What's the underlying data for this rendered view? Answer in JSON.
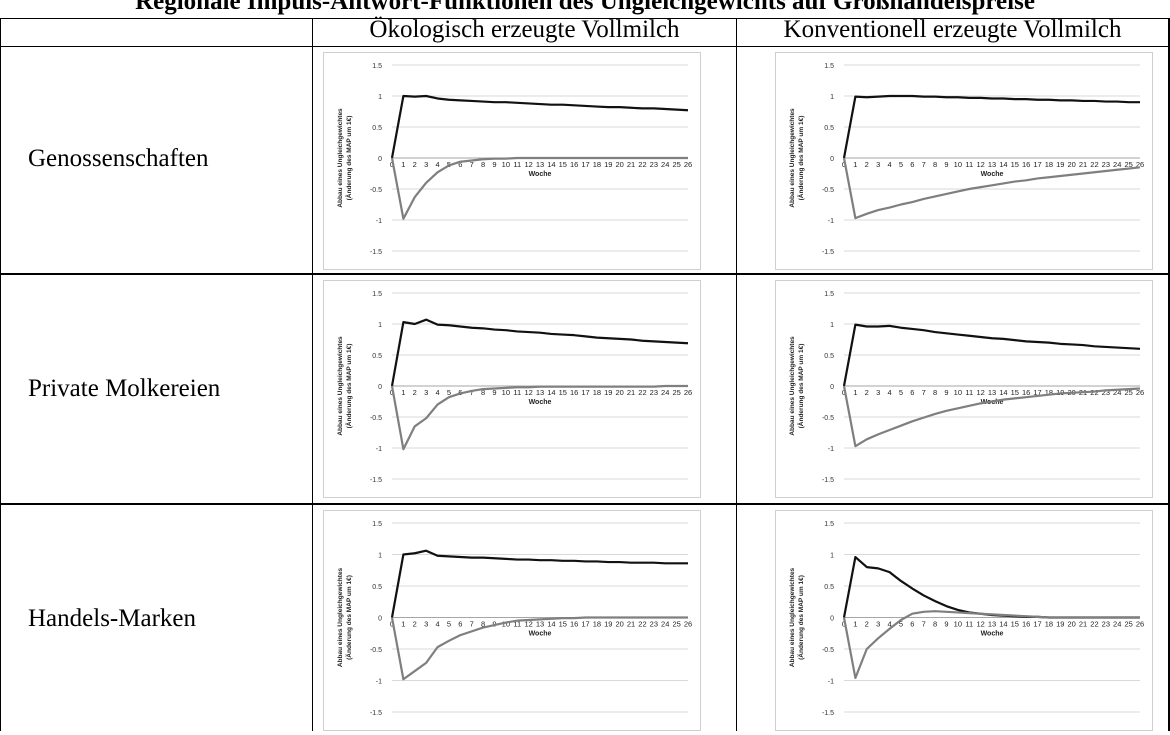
{
  "title_partial": "Regionale Impuls-Antwort-Funktionen des Ungleichgewichts auf Großhandelspreise",
  "columns": [
    "Ökologisch erzeugte Vollmilch",
    "Konventionell erzeugte Vollmilch"
  ],
  "rows": [
    "Genossenschaften",
    "Private Molkereien",
    "Handels-Marken"
  ],
  "colors": {
    "black_series": "#111111",
    "gray_series": "#7f7f7f",
    "grid": "#d9d9d9",
    "axis": "#a6a6a6"
  },
  "chart_data": [
    {
      "type": "line",
      "row": "Genossenschaften",
      "column": "Ökologisch erzeugte Vollmilch",
      "xlabel": "Woche",
      "ylabel": "Abbau eines Ungleichgewichtes (Änderung des MAP um 1€)",
      "ylim": [
        -1.5,
        1.5
      ],
      "yticks": [
        "1.5",
        "1",
        "0.5",
        "0",
        "-0.5",
        "-1",
        "-1.5"
      ],
      "x": [
        0,
        1,
        2,
        3,
        4,
        5,
        6,
        7,
        8,
        9,
        10,
        11,
        12,
        13,
        14,
        15,
        16,
        17,
        18,
        19,
        20,
        21,
        22,
        23,
        24,
        25,
        26
      ],
      "series": [
        {
          "values": [
            0,
            1.0,
            0.99,
            1.0,
            0.96,
            0.94,
            0.93,
            0.92,
            0.91,
            0.9,
            0.9,
            0.89,
            0.88,
            0.87,
            0.86,
            0.86,
            0.85,
            0.84,
            0.83,
            0.82,
            0.82,
            0.81,
            0.8,
            0.8,
            0.79,
            0.78,
            0.77
          ]
        },
        {
          "values": [
            0,
            -0.98,
            -0.63,
            -0.4,
            -0.23,
            -0.12,
            -0.06,
            -0.04,
            -0.02,
            -0.01,
            -0.01,
            0,
            0,
            0,
            0,
            0,
            0,
            0,
            0,
            0,
            0,
            0,
            0,
            0,
            0,
            0,
            0
          ]
        }
      ]
    },
    {
      "type": "line",
      "row": "Genossenschaften",
      "column": "Konventionell erzeugte Vollmilch",
      "xlabel": "Woche",
      "ylabel": "Abbau eines Ungleichgewichtes (Änderung des MAP um 1€)",
      "ylim": [
        -1.5,
        1.5
      ],
      "yticks": [
        "1.5",
        "1",
        "0.5",
        "0",
        "-0.5",
        "-1",
        "-1.5"
      ],
      "x": [
        0,
        1,
        2,
        3,
        4,
        5,
        6,
        7,
        8,
        9,
        10,
        11,
        12,
        13,
        14,
        15,
        16,
        17,
        18,
        19,
        20,
        21,
        22,
        23,
        24,
        25,
        26
      ],
      "series": [
        {
          "values": [
            0,
            0.99,
            0.98,
            0.99,
            1.0,
            1.0,
            1.0,
            0.99,
            0.99,
            0.98,
            0.98,
            0.97,
            0.97,
            0.96,
            0.96,
            0.95,
            0.95,
            0.94,
            0.94,
            0.93,
            0.93,
            0.92,
            0.92,
            0.91,
            0.91,
            0.9,
            0.9
          ]
        },
        {
          "values": [
            0,
            -0.97,
            -0.9,
            -0.84,
            -0.8,
            -0.75,
            -0.71,
            -0.66,
            -0.62,
            -0.58,
            -0.54,
            -0.5,
            -0.47,
            -0.44,
            -0.41,
            -0.38,
            -0.36,
            -0.33,
            -0.31,
            -0.29,
            -0.27,
            -0.25,
            -0.23,
            -0.21,
            -0.19,
            -0.17,
            -0.15
          ]
        }
      ]
    },
    {
      "type": "line",
      "row": "Private Molkereien",
      "column": "Ökologisch erzeugte Vollmilch",
      "xlabel": "Woche",
      "ylabel": "Abbau eines Ungleichgewichtes (Änderung des MAP um 1€)",
      "ylim": [
        -1.5,
        1.5
      ],
      "yticks": [
        "1.5",
        "1",
        "0.5",
        "0",
        "-0.5",
        "-1",
        "-1.5"
      ],
      "x": [
        0,
        1,
        2,
        3,
        4,
        5,
        6,
        7,
        8,
        9,
        10,
        11,
        12,
        13,
        14,
        15,
        16,
        17,
        18,
        19,
        20,
        21,
        22,
        23,
        24,
        25,
        26
      ],
      "series": [
        {
          "values": [
            0,
            1.03,
            1.0,
            1.07,
            0.99,
            0.98,
            0.96,
            0.94,
            0.93,
            0.91,
            0.9,
            0.88,
            0.87,
            0.86,
            0.84,
            0.83,
            0.82,
            0.8,
            0.78,
            0.77,
            0.76,
            0.75,
            0.73,
            0.72,
            0.71,
            0.7,
            0.69
          ]
        },
        {
          "values": [
            0,
            -1.02,
            -0.65,
            -0.52,
            -0.3,
            -0.18,
            -0.12,
            -0.08,
            -0.05,
            -0.04,
            -0.03,
            -0.02,
            -0.02,
            -0.01,
            -0.01,
            -0.01,
            -0.01,
            -0.01,
            -0.01,
            -0.01,
            -0.01,
            -0.01,
            -0.01,
            -0.01,
            0,
            0,
            0
          ]
        }
      ]
    },
    {
      "type": "line",
      "row": "Private Molkereien",
      "column": "Konventionell erzeugte Vollmilch",
      "xlabel": "Woche",
      "ylabel": "Abbau eines Ungleichgewichtes (Änderung des MAP um 1€)",
      "ylim": [
        -1.5,
        1.5
      ],
      "yticks": [
        "1.5",
        "1",
        "0.5",
        "0",
        "-0.5",
        "-1",
        "-1.5"
      ],
      "x": [
        0,
        1,
        2,
        3,
        4,
        5,
        6,
        7,
        8,
        9,
        10,
        11,
        12,
        13,
        14,
        15,
        16,
        17,
        18,
        19,
        20,
        21,
        22,
        23,
        24,
        25,
        26
      ],
      "series": [
        {
          "values": [
            0,
            0.99,
            0.96,
            0.96,
            0.97,
            0.94,
            0.92,
            0.9,
            0.87,
            0.85,
            0.83,
            0.81,
            0.79,
            0.77,
            0.76,
            0.74,
            0.72,
            0.71,
            0.7,
            0.68,
            0.67,
            0.66,
            0.64,
            0.63,
            0.62,
            0.61,
            0.6
          ]
        },
        {
          "values": [
            0,
            -0.97,
            -0.86,
            -0.78,
            -0.71,
            -0.64,
            -0.57,
            -0.51,
            -0.45,
            -0.4,
            -0.36,
            -0.32,
            -0.28,
            -0.25,
            -0.22,
            -0.2,
            -0.18,
            -0.16,
            -0.14,
            -0.12,
            -0.11,
            -0.1,
            -0.09,
            -0.07,
            -0.06,
            -0.05,
            -0.04
          ]
        }
      ]
    },
    {
      "type": "line",
      "row": "Handels-Marken",
      "column": "Ökologisch erzeugte Vollmilch",
      "xlabel": "Woche",
      "ylabel": "Abbau eines Ungleichgewichtes (Änderung des MAP um 1€)",
      "ylim": [
        -1.5,
        1.5
      ],
      "yticks": [
        "1.5",
        "1",
        "0.5",
        "0",
        "-0.5",
        "-1",
        "-1.5"
      ],
      "x": [
        0,
        1,
        2,
        3,
        4,
        5,
        6,
        7,
        8,
        9,
        10,
        11,
        12,
        13,
        14,
        15,
        16,
        17,
        18,
        19,
        20,
        21,
        22,
        23,
        24,
        25,
        26
      ],
      "series": [
        {
          "values": [
            0,
            1.0,
            1.02,
            1.06,
            0.98,
            0.97,
            0.96,
            0.95,
            0.95,
            0.94,
            0.93,
            0.92,
            0.92,
            0.91,
            0.91,
            0.9,
            0.9,
            0.89,
            0.89,
            0.88,
            0.88,
            0.87,
            0.87,
            0.87,
            0.86,
            0.86,
            0.86
          ]
        },
        {
          "values": [
            0,
            -0.98,
            -0.85,
            -0.72,
            -0.47,
            -0.37,
            -0.28,
            -0.22,
            -0.16,
            -0.12,
            -0.08,
            -0.05,
            -0.04,
            -0.03,
            -0.02,
            -0.01,
            -0.01,
            0,
            0,
            0,
            0,
            0,
            0,
            0,
            0,
            0,
            0
          ]
        }
      ]
    },
    {
      "type": "line",
      "row": "Handels-Marken",
      "column": "Konventionell erzeugte Vollmilch",
      "xlabel": "Woche",
      "ylabel": "Abbau eines Ungleichgewichtes (Änderung des MAP um 1€)",
      "ylim": [
        -1.5,
        1.5
      ],
      "yticks": [
        "1.5",
        "1",
        "0.5",
        "0",
        "-0.5",
        "-1",
        "-1.5"
      ],
      "x": [
        0,
        1,
        2,
        3,
        4,
        5,
        6,
        7,
        8,
        9,
        10,
        11,
        12,
        13,
        14,
        15,
        16,
        17,
        18,
        19,
        20,
        21,
        22,
        23,
        24,
        25,
        26
      ],
      "series": [
        {
          "values": [
            0,
            0.96,
            0.8,
            0.78,
            0.72,
            0.58,
            0.46,
            0.35,
            0.26,
            0.18,
            0.12,
            0.08,
            0.06,
            0.04,
            0.03,
            0.02,
            0.01,
            0.01,
            0,
            0,
            0,
            0,
            0,
            0,
            0,
            0,
            0
          ]
        },
        {
          "values": [
            0,
            -0.96,
            -0.5,
            -0.33,
            -0.18,
            -0.04,
            0.06,
            0.09,
            0.1,
            0.09,
            0.08,
            0.07,
            0.06,
            0.05,
            0.04,
            0.03,
            0.02,
            0.01,
            0,
            0,
            0,
            0,
            0,
            0,
            0,
            0,
            0
          ]
        }
      ]
    }
  ]
}
